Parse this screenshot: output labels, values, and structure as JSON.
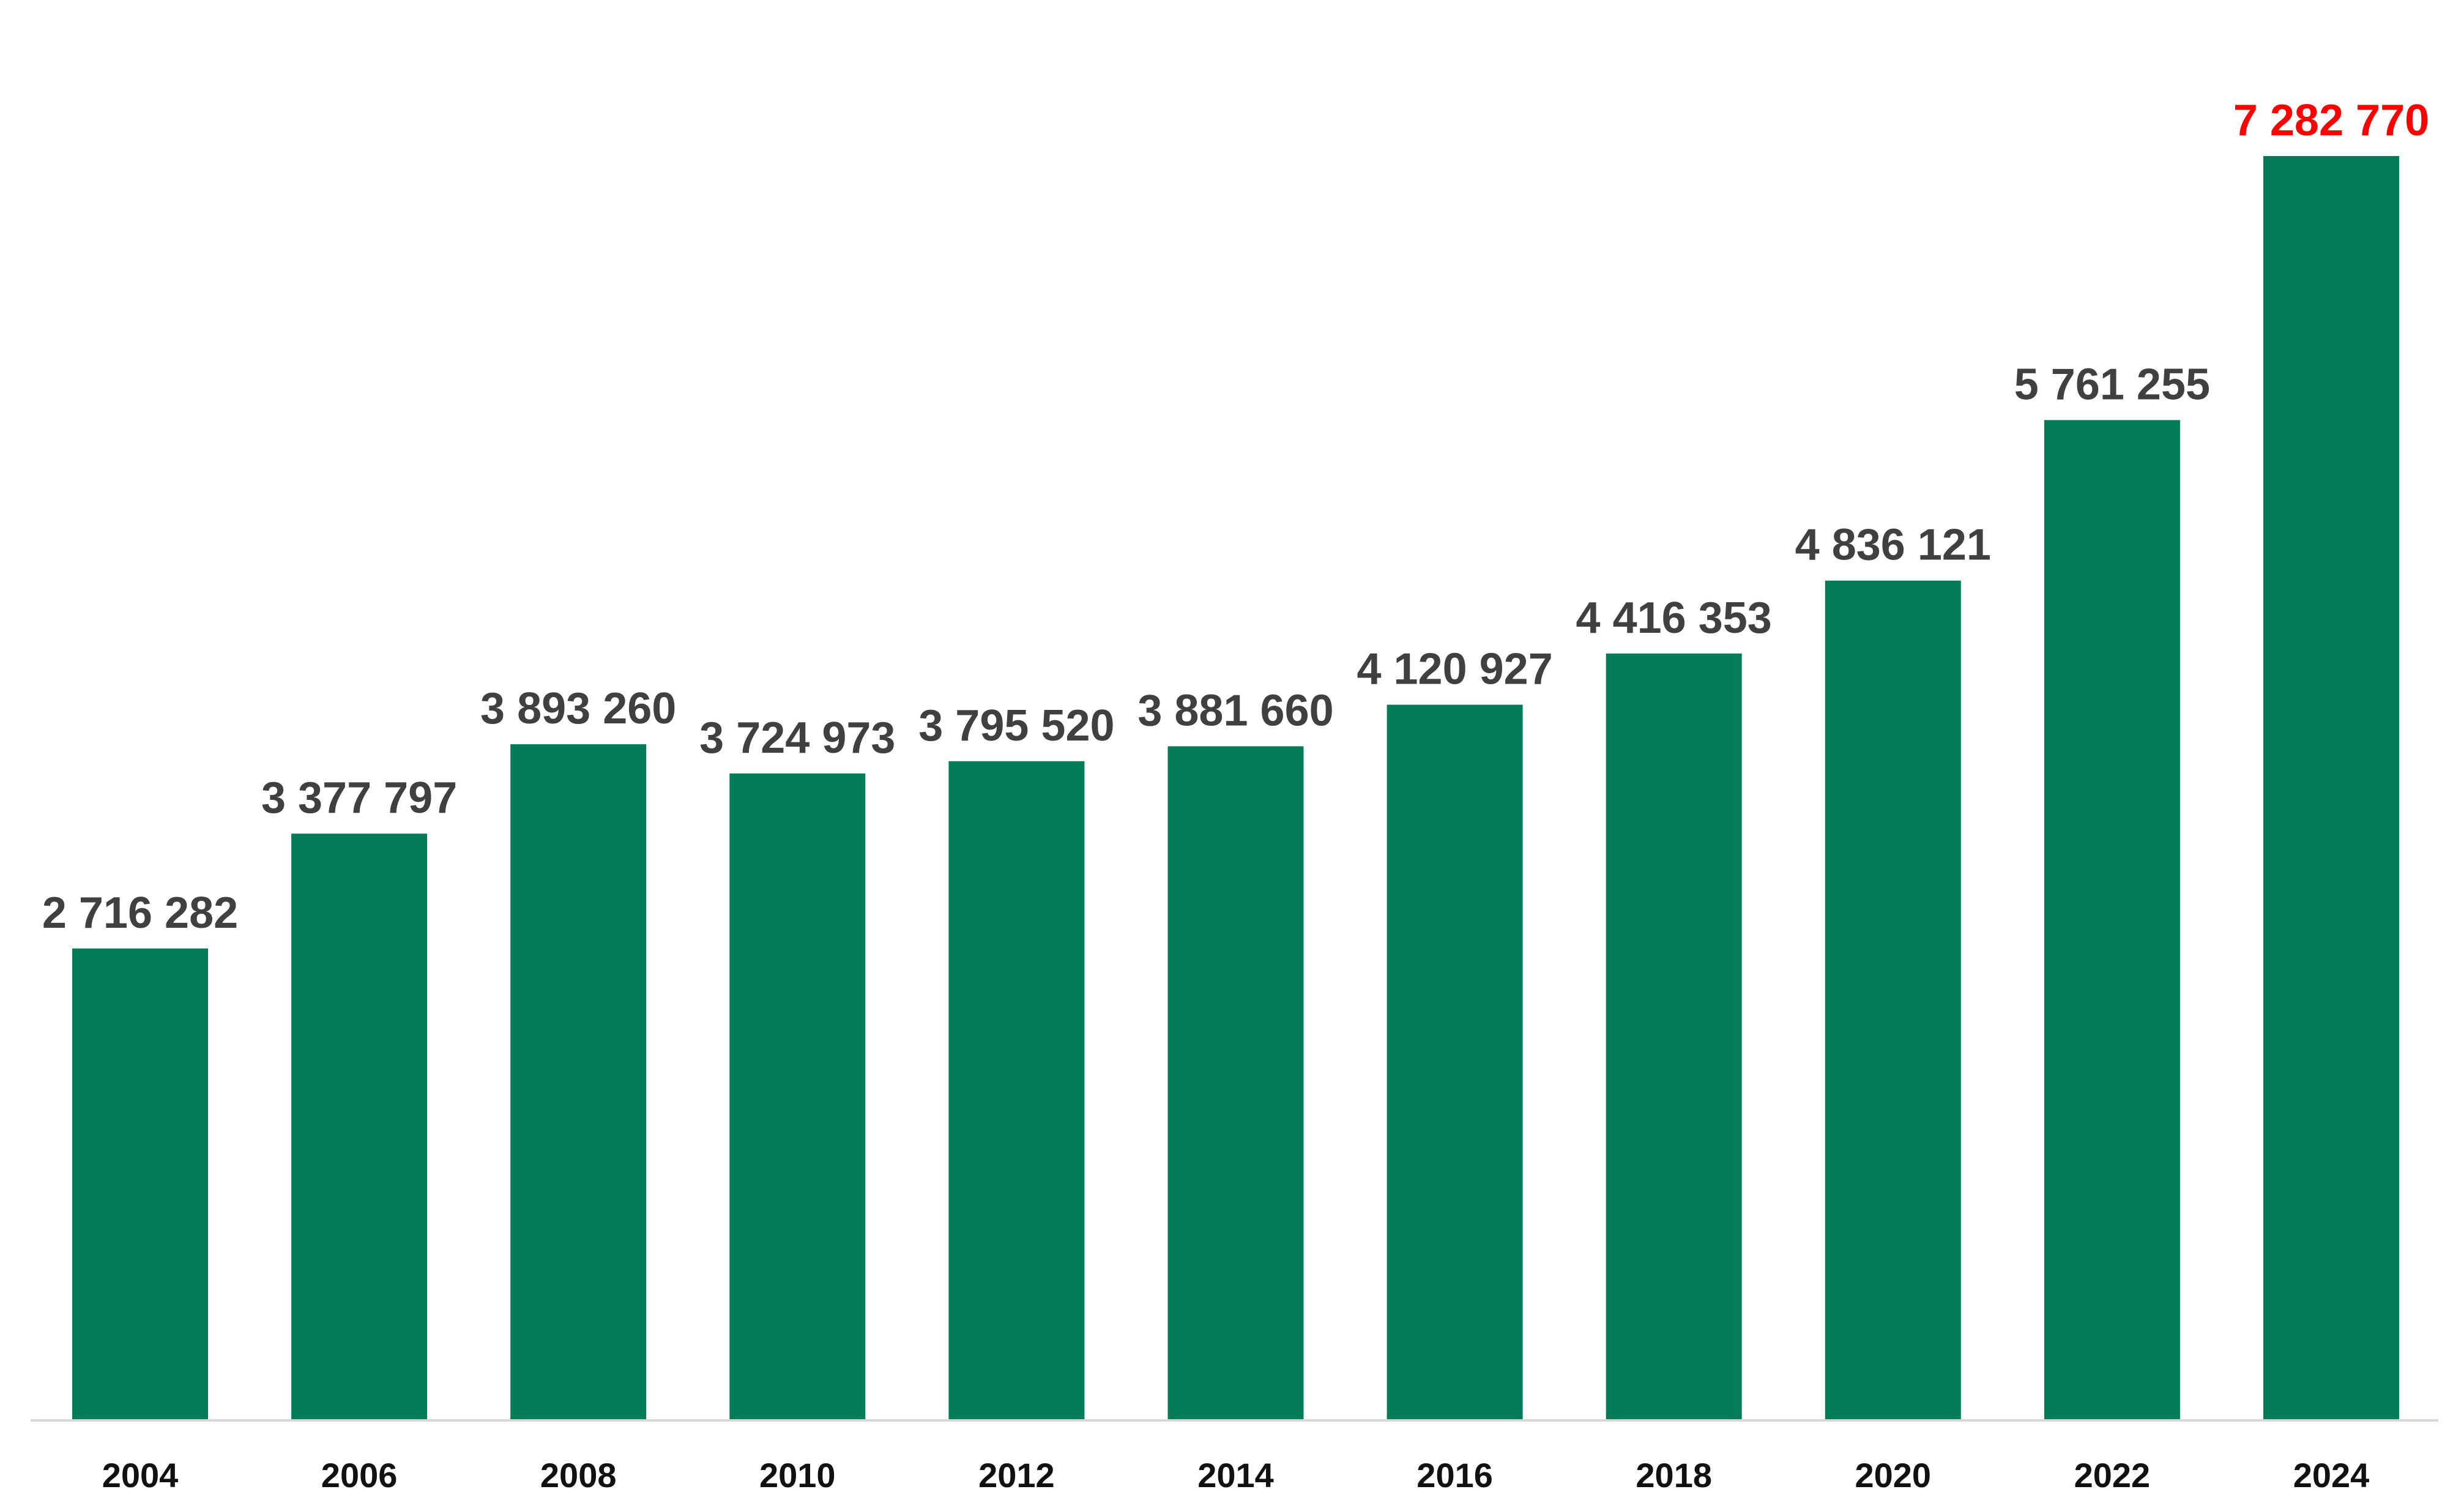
{
  "chart_data": {
    "type": "bar",
    "title": "",
    "xlabel": "",
    "ylabel": "",
    "categories": [
      "2004",
      "2006",
      "2008",
      "2010",
      "2012",
      "2014",
      "2016",
      "2018",
      "2020",
      "2022",
      "2024"
    ],
    "values": [
      2716282,
      3377797,
      3893260,
      3724973,
      3795520,
      3881660,
      4120927,
      4416353,
      4836121,
      5761255,
      7282770
    ],
    "value_labels": [
      "2 716 282",
      "3 377 797",
      "3 893 260",
      "3 724 973",
      "3 795 520",
      "3 881 660",
      "4 120 927",
      "4 416 353",
      "4 836 121",
      "5 761 255",
      "7 282 770"
    ],
    "highlight_index": 10,
    "ylim": [
      0,
      7282770
    ],
    "grid": false,
    "legend": "none",
    "colors": {
      "bar": "#027D58",
      "value_label": "#404040",
      "highlight_label": "#FF0000",
      "tick_label": "#111111",
      "axis": "#D9D9D9"
    }
  }
}
